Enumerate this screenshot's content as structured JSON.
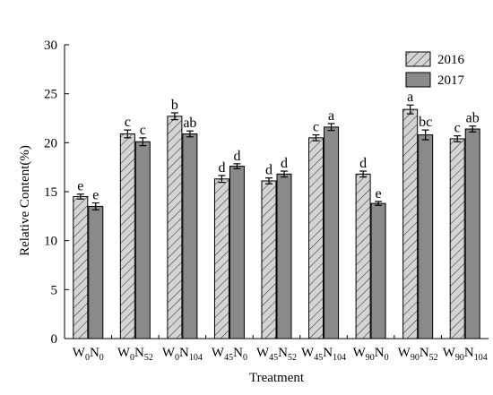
{
  "chart_data": {
    "type": "bar",
    "title": "",
    "xlabel": "Treatment",
    "ylabel": "Relative Content(%)",
    "ylim": [
      0,
      30
    ],
    "yticks": [
      0,
      5,
      10,
      15,
      20,
      25,
      30
    ],
    "grid": false,
    "legend_position": "top-right",
    "categories": [
      {
        "label": "W0N0",
        "parts": [
          [
            "W",
            ""
          ],
          [
            "0",
            "sub"
          ],
          [
            "N",
            ""
          ],
          [
            "0",
            "sub"
          ]
        ]
      },
      {
        "label": "W0N52",
        "parts": [
          [
            "W",
            ""
          ],
          [
            "0",
            "sub"
          ],
          [
            "N",
            ""
          ],
          [
            "52",
            "sub"
          ]
        ]
      },
      {
        "label": "W0N104",
        "parts": [
          [
            "W",
            ""
          ],
          [
            "0",
            "sub"
          ],
          [
            "N",
            ""
          ],
          [
            "104",
            "sub"
          ]
        ]
      },
      {
        "label": "W45N0",
        "parts": [
          [
            "W",
            ""
          ],
          [
            "45",
            "sub"
          ],
          [
            "N",
            ""
          ],
          [
            "0",
            "sub"
          ]
        ]
      },
      {
        "label": "W45N52",
        "parts": [
          [
            "W",
            ""
          ],
          [
            "45",
            "sub"
          ],
          [
            "N",
            ""
          ],
          [
            "52",
            "sub"
          ]
        ]
      },
      {
        "label": "W45N104",
        "parts": [
          [
            "W",
            ""
          ],
          [
            "45",
            "sub"
          ],
          [
            "N",
            ""
          ],
          [
            "104",
            "sub"
          ]
        ]
      },
      {
        "label": "W90N0",
        "parts": [
          [
            "W",
            ""
          ],
          [
            "90",
            "sub"
          ],
          [
            "N",
            ""
          ],
          [
            "0",
            "sub"
          ]
        ]
      },
      {
        "label": "W90N52",
        "parts": [
          [
            "W",
            ""
          ],
          [
            "90",
            "sub"
          ],
          [
            "N",
            ""
          ],
          [
            "52",
            "sub"
          ]
        ]
      },
      {
        "label": "W90N104",
        "parts": [
          [
            "W",
            ""
          ],
          [
            "90",
            "sub"
          ],
          [
            "N",
            ""
          ],
          [
            "104",
            "sub"
          ]
        ]
      }
    ],
    "series": [
      {
        "name": "2016",
        "fill": "#d4d4d4",
        "hatch": true,
        "values": [
          14.5,
          20.9,
          22.7,
          16.3,
          16.1,
          20.5,
          16.8,
          23.4,
          20.4
        ],
        "errors": [
          0.25,
          0.4,
          0.35,
          0.35,
          0.3,
          0.3,
          0.3,
          0.45,
          0.3
        ],
        "letters": [
          "e",
          "c",
          "b",
          "d",
          "d",
          "c",
          "d",
          "a",
          "c"
        ]
      },
      {
        "name": "2017",
        "fill": "#8a8a8a",
        "hatch": false,
        "values": [
          13.5,
          20.1,
          20.9,
          17.6,
          16.8,
          21.6,
          13.8,
          20.8,
          21.4
        ],
        "errors": [
          0.35,
          0.4,
          0.3,
          0.25,
          0.3,
          0.35,
          0.2,
          0.5,
          0.3
        ],
        "letters": [
          "e",
          "c",
          "ab",
          "d",
          "d",
          "a",
          "e",
          "bc",
          "ab"
        ]
      }
    ]
  }
}
